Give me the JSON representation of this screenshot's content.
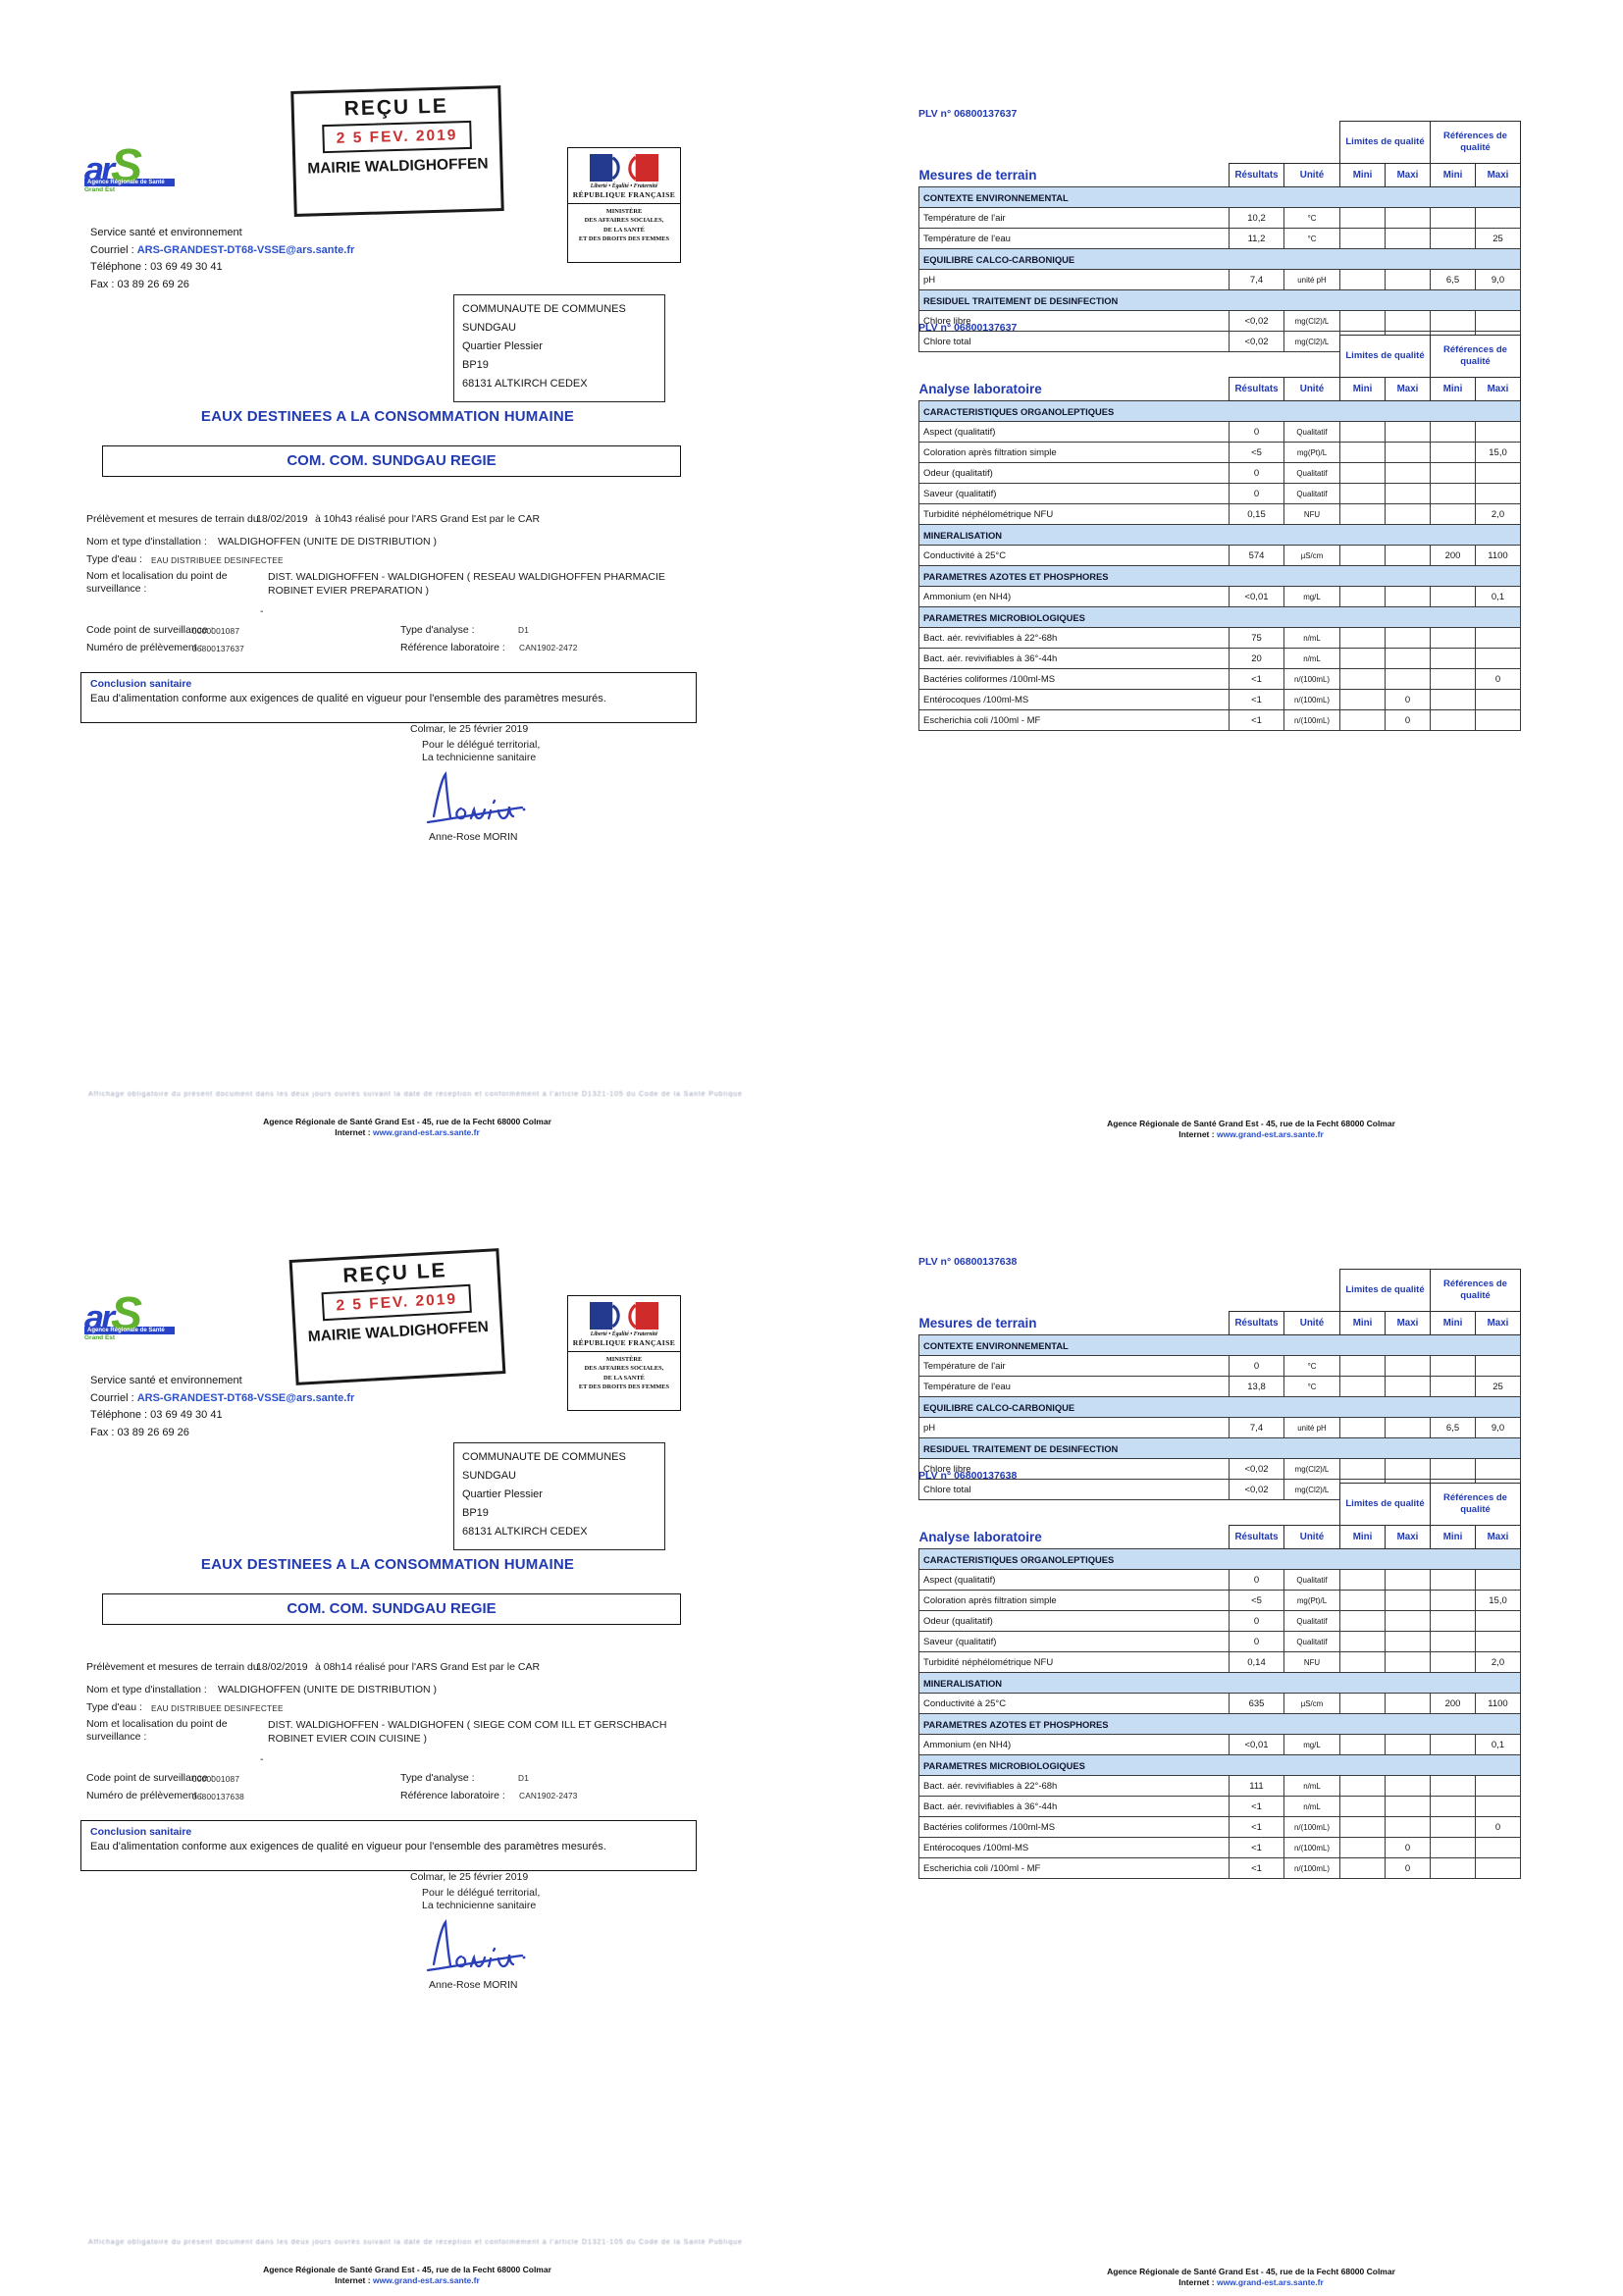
{
  "common": {
    "logo": {
      "ar": "ar",
      "s": "S",
      "band": "Agence Régionale de Santé",
      "region": "Grand Est"
    },
    "stamp": {
      "received": "REÇU LE",
      "date": "2 5 FEV. 2019",
      "mairie": "MAIRIE WALDIGHOFFEN"
    },
    "ministry": {
      "motto": "Liberté • Égalité • Fraternité",
      "republic": "RÉPUBLIQUE FRANÇAISE",
      "l1": "MINISTÈRE",
      "l2": "DES AFFAIRES SOCIALES,",
      "l3": "DE LA SANTÉ",
      "l4": "ET DES DROITS DES FEMMES"
    },
    "contact": {
      "service": "Service santé et environnement",
      "courriel_label": "Courriel : ",
      "email": "ARS-GRANDEST-DT68-VSSE@ars.sante.fr",
      "phone": "Téléphone : 03 69 49 30 41",
      "fax": "Fax : 03 89 26 69 26"
    },
    "recipient": {
      "l1": "COMMUNAUTE DE COMMUNES SUNDGAU",
      "l2": "Quartier Plessier",
      "l3": "BP19",
      "l4": "68131 ALTKIRCH CEDEX"
    },
    "title": "EAUX DESTINEES A LA CONSOMMATION HUMAINE",
    "subtitle": "COM. COM. SUNDGAU REGIE",
    "labels": {
      "sampling": "Prélèvement et mesures de terrain du",
      "install": "Nom et type d'installation :",
      "water": "Type d'eau :",
      "point1": "Nom et localisation du point de",
      "point2": "surveillance :",
      "dash": "-",
      "code": "Code point de surveillance :",
      "analysis": "Type d'analyse :",
      "number": "Numéro de prélèvement :",
      "labref": "Référence laboratoire :"
    },
    "conclusion": {
      "title": "Conclusion sanitaire",
      "body": "Eau d'alimentation conforme aux exigences de qualité en vigueur pour  l'ensemble des paramètres mesurés."
    },
    "sig": {
      "place_date": "Colmar, le 25 février 2019",
      "for1": "Pour le délégué territorial,",
      "for2": "La technicienne sanitaire",
      "name": "Anne-Rose MORIN"
    },
    "footnote": "Affichage obligatoire du présent document dans les deux jours ouvrés suivant la date de réception et conformément à l'article D1321-105 du Code de la Santé Publique",
    "footer": {
      "line1": "Agence Régionale de Santé Grand Est - 45, rue de la Fecht 68000 Colmar",
      "internet_label": "Internet : ",
      "url": "www.grand-est.ars.sante.fr"
    },
    "table_headers": {
      "terrain": "Mesures de terrain",
      "labo": "Analyse laboratoire",
      "results": "Résultats",
      "unit": "Unité",
      "mini": "Mini",
      "maxi": "Maxi",
      "limits": "Limites de qualité",
      "refs": "Références de qualité"
    }
  },
  "pages": [
    {
      "plv": "PLV n° 06800137637",
      "date": "18/02/2019",
      "time_rest": "à 10h43  réalisé pour l'ARS Grand Est par le CAR",
      "installation": "WALDIGHOFFEN (UNITE DE DISTRIBUTION )",
      "water": "EAU DISTRIBUEE DESINFECTEE",
      "point_l1": "DIST. WALDIGHOFFEN - WALDIGHOFEN ( RESEAU WALDIGHOFFEN PHARMACIE",
      "point_l2": "ROBINET EVIER PREPARATION )",
      "code": "0000001087",
      "analysis": "D1",
      "number": "06800137637",
      "labref": "CAN1902-2472",
      "terrain_rows": [
        {
          "s": "CONTEXTE ENVIRONNEMENTAL"
        },
        {
          "l": "Température de l'air",
          "r": "10,2",
          "u": "°C"
        },
        {
          "l": "Température de l'eau",
          "r": "11,2",
          "u": "°C",
          "rmax": "25"
        },
        {
          "s": "EQUILIBRE CALCO-CARBONIQUE"
        },
        {
          "l": "pH",
          "r": "7,4",
          "u": "unité pH",
          "rmin": "6,5",
          "rmax": "9,0"
        },
        {
          "s": "RESIDUEL TRAITEMENT DE DESINFECTION"
        },
        {
          "l": "Chlore libre",
          "r": "<0,02",
          "u": "mg(Cl2)/L"
        },
        {
          "l": "Chlore total",
          "r": "<0,02",
          "u": "mg(Cl2)/L"
        }
      ],
      "labo_rows": [
        {
          "s": "CARACTERISTIQUES ORGANOLEPTIQUES"
        },
        {
          "l": "Aspect (qualitatif)",
          "r": "0",
          "u": "Qualitatif"
        },
        {
          "l": "Coloration après filtration simple",
          "r": "<5",
          "u": "mg(Pt)/L",
          "rmax": "15,0"
        },
        {
          "l": "Odeur (qualitatif)",
          "r": "0",
          "u": "Qualitatif"
        },
        {
          "l": "Saveur (qualitatif)",
          "r": "0",
          "u": "Qualitatif"
        },
        {
          "l": "Turbidité néphélométrique NFU",
          "r": "0,15",
          "u": "NFU",
          "rmax": "2,0"
        },
        {
          "s": "MINERALISATION"
        },
        {
          "l": "Conductivité à 25°C",
          "r": "574",
          "u": "µS/cm",
          "rmin": "200",
          "rmax": "1100"
        },
        {
          "s": "PARAMETRES AZOTES ET PHOSPHORES"
        },
        {
          "l": "Ammonium (en NH4)",
          "r": "<0,01",
          "u": "mg/L",
          "rmax": "0,1"
        },
        {
          "s": "PARAMETRES MICROBIOLOGIQUES"
        },
        {
          "l": "Bact. aér. revivifiables à 22°-68h",
          "r": "75",
          "u": "n/mL"
        },
        {
          "l": "Bact. aér. revivifiables à 36°-44h",
          "r": "20",
          "u": "n/mL"
        },
        {
          "l": "Bactéries coliformes /100ml-MS",
          "r": "<1",
          "u": "n/(100mL)",
          "rmax": "0"
        },
        {
          "l": "Entérocoques /100ml-MS",
          "r": "<1",
          "u": "n/(100mL)",
          "lmax": "0"
        },
        {
          "l": "Escherichia coli /100ml - MF",
          "r": "<1",
          "u": "n/(100mL)",
          "lmax": "0"
        }
      ]
    },
    {
      "plv": "PLV n° 06800137638",
      "date": "18/02/2019",
      "time_rest": "à 08h14  réalisé pour l'ARS Grand Est par le CAR",
      "installation": "WALDIGHOFFEN (UNITE DE DISTRIBUTION )",
      "water": "EAU DISTRIBUEE DESINFECTEE",
      "point_l1": "DIST. WALDIGHOFFEN - WALDIGHOFEN ( SIEGE COM COM ILL ET GERSCHBACH",
      "point_l2": "ROBINET EVIER COIN CUISINE )",
      "code": "0000001087",
      "analysis": "D1",
      "number": "06800137638",
      "labref": "CAN1902-2473",
      "terrain_rows": [
        {
          "s": "CONTEXTE ENVIRONNEMENTAL"
        },
        {
          "l": "Température de l'air",
          "r": "0",
          "u": "°C"
        },
        {
          "l": "Température de l'eau",
          "r": "13,8",
          "u": "°C",
          "rmax": "25"
        },
        {
          "s": "EQUILIBRE CALCO-CARBONIQUE"
        },
        {
          "l": "pH",
          "r": "7,4",
          "u": "unité pH",
          "rmin": "6,5",
          "rmax": "9,0"
        },
        {
          "s": "RESIDUEL TRAITEMENT DE DESINFECTION"
        },
        {
          "l": "Chlore libre",
          "r": "<0,02",
          "u": "mg(Cl2)/L"
        },
        {
          "l": "Chlore total",
          "r": "<0,02",
          "u": "mg(Cl2)/L"
        }
      ],
      "labo_rows": [
        {
          "s": "CARACTERISTIQUES ORGANOLEPTIQUES"
        },
        {
          "l": "Aspect (qualitatif)",
          "r": "0",
          "u": "Qualitatif"
        },
        {
          "l": "Coloration après filtration simple",
          "r": "<5",
          "u": "mg(Pt)/L",
          "rmax": "15,0"
        },
        {
          "l": "Odeur (qualitatif)",
          "r": "0",
          "u": "Qualitatif"
        },
        {
          "l": "Saveur (qualitatif)",
          "r": "0",
          "u": "Qualitatif"
        },
        {
          "l": "Turbidité néphélométrique NFU",
          "r": "0,14",
          "u": "NFU",
          "rmax": "2,0"
        },
        {
          "s": "MINERALISATION"
        },
        {
          "l": "Conductivité à 25°C",
          "r": "635",
          "u": "µS/cm",
          "rmin": "200",
          "rmax": "1100"
        },
        {
          "s": "PARAMETRES AZOTES ET PHOSPHORES"
        },
        {
          "l": "Ammonium (en NH4)",
          "r": "<0,01",
          "u": "mg/L",
          "rmax": "0,1"
        },
        {
          "s": "PARAMETRES MICROBIOLOGIQUES"
        },
        {
          "l": "Bact. aér. revivifiables à 22°-68h",
          "r": "111",
          "u": "n/mL"
        },
        {
          "l": "Bact. aér. revivifiables à 36°-44h",
          "r": "<1",
          "u": "n/mL"
        },
        {
          "l": "Bactéries coliformes /100ml-MS",
          "r": "<1",
          "u": "n/(100mL)",
          "rmax": "0"
        },
        {
          "l": "Entérocoques /100ml-MS",
          "r": "<1",
          "u": "n/(100mL)",
          "lmax": "0"
        },
        {
          "l": "Escherichia coli /100ml - MF",
          "r": "<1",
          "u": "n/(100mL)",
          "lmax": "0"
        }
      ]
    }
  ]
}
